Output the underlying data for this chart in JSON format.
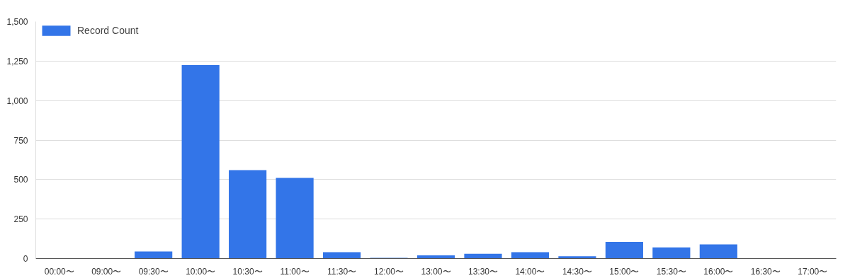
{
  "chart_data": {
    "type": "bar",
    "categories": [
      "00:00〜",
      "09:00〜",
      "09:30〜",
      "10:00〜",
      "10:30〜",
      "11:00〜",
      "11:30〜",
      "12:00〜",
      "13:00〜",
      "13:30〜",
      "14:00〜",
      "14:30〜",
      "15:00〜",
      "15:30〜",
      "16:00〜",
      "16:30〜",
      "17:00〜"
    ],
    "series": [
      {
        "name": "Record Count",
        "color": "#3375e8",
        "values": [
          0,
          0,
          45,
          1225,
          560,
          510,
          40,
          5,
          20,
          30,
          40,
          15,
          105,
          70,
          90,
          0,
          0
        ]
      }
    ],
    "ylim": [
      0,
      1500
    ],
    "yticks": [
      0,
      {
        "value": 250,
        "label": "250"
      },
      {
        "value": 500,
        "label": "500"
      },
      {
        "value": 750,
        "label": "750"
      },
      {
        "value": 1000,
        "label": "1,000"
      },
      {
        "value": 1250,
        "label": "1,250"
      },
      {
        "value": 1500,
        "label": "1,500"
      }
    ],
    "grid": "y",
    "legend": "top left"
  }
}
